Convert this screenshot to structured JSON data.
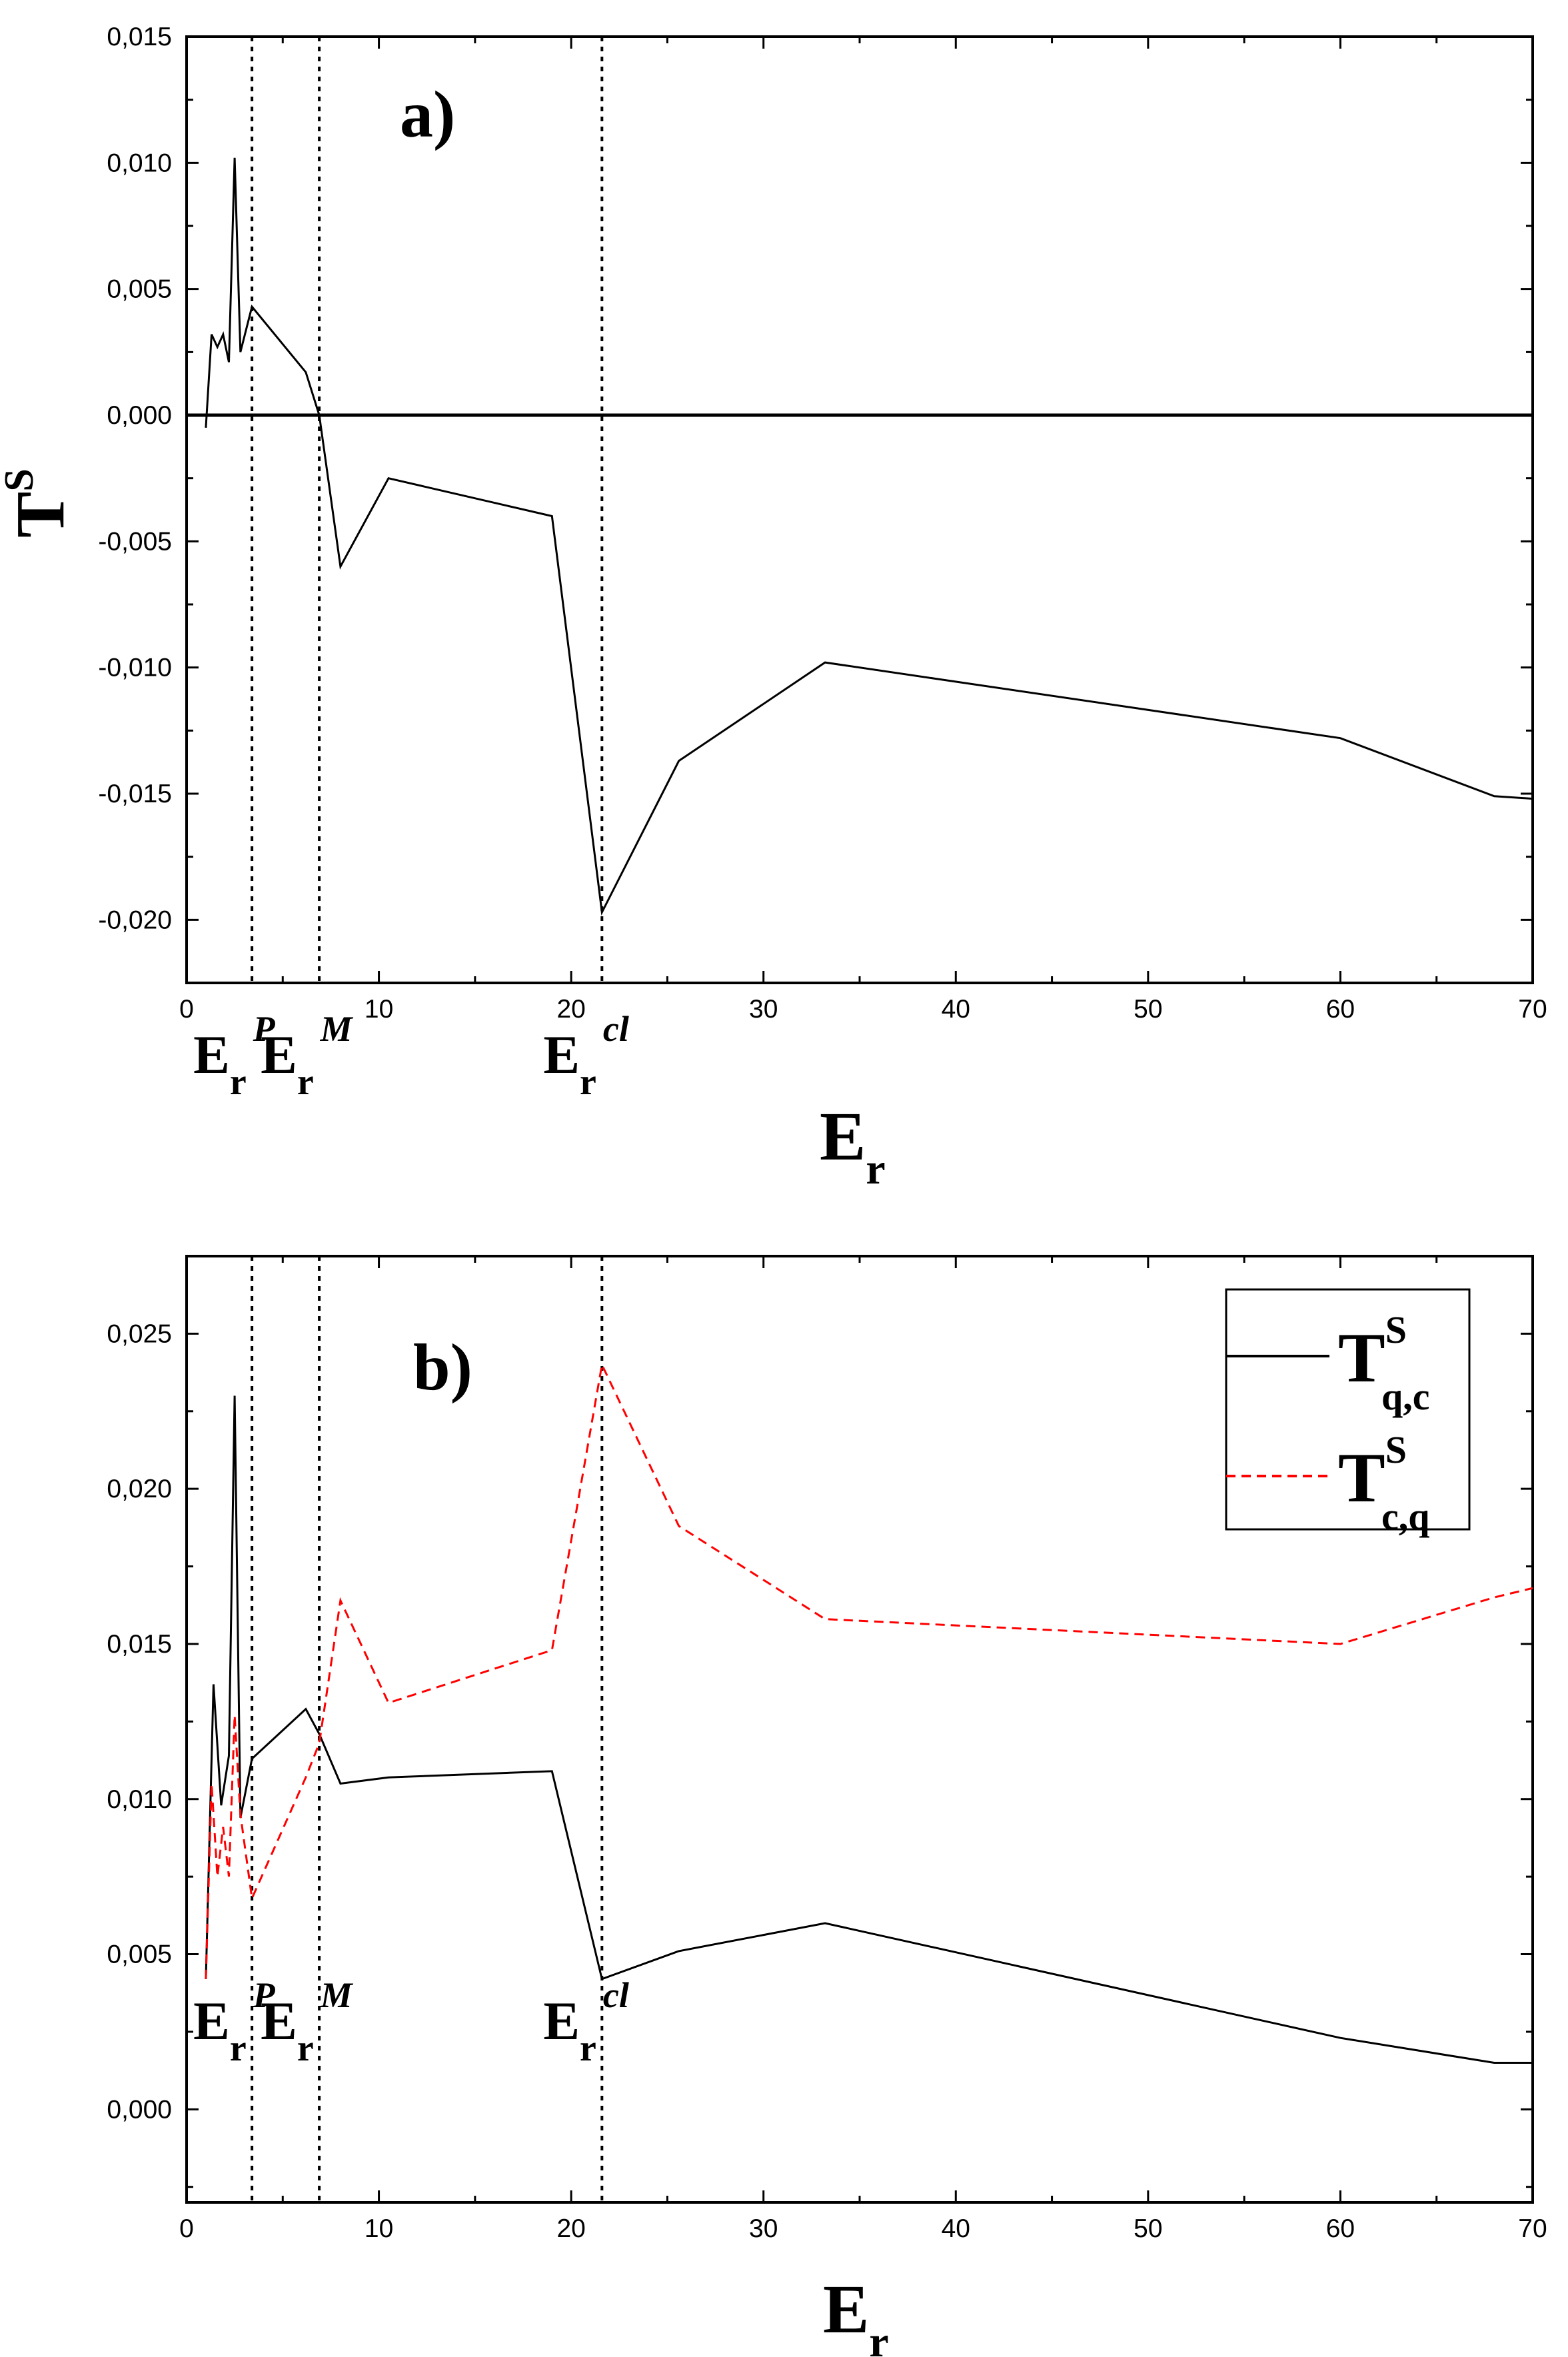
{
  "chart_data": [
    {
      "panel": "a)",
      "type": "line",
      "xlabel": "E_r",
      "ylabel": "T^S",
      "xlim": [
        0,
        70
      ],
      "ylim": [
        -0.0225,
        0.015
      ],
      "xticks": [
        0,
        10,
        20,
        30,
        40,
        50,
        60,
        70
      ],
      "xtick_labels": [
        "0",
        "10",
        "20",
        "30",
        "40",
        "50",
        "60",
        "70"
      ],
      "yticks": [
        -0.02,
        -0.015,
        -0.01,
        -0.005,
        0.0,
        0.005,
        0.01,
        0.015
      ],
      "ytick_labels": [
        "-0,020",
        "-0,015",
        "-0,010",
        "-0,005",
        "0,000",
        "0,005",
        "0,010",
        "0,015"
      ],
      "reference_line_y": 0,
      "vlines": [
        {
          "x": 3.4,
          "label_main": "E",
          "label_sub": "r",
          "label_sup": "P"
        },
        {
          "x": 6.9,
          "label_main": "E",
          "label_sub": "r",
          "label_sup": "M"
        },
        {
          "x": 21.6,
          "label_main": "E",
          "label_sub": "r",
          "label_sup": "cl"
        }
      ],
      "series": [
        {
          "color": "#000000",
          "dash": "solid",
          "x": [
            1.0,
            1.3,
            1.6,
            1.9,
            2.2,
            2.5,
            2.8,
            3.4,
            6.2,
            6.9,
            8.0,
            10.5,
            19.0,
            21.6,
            25.6,
            33.2,
            60.0,
            68.0,
            70.0
          ],
          "y": [
            -0.0005,
            0.0032,
            0.0027,
            0.0032,
            0.0021,
            0.0102,
            0.0025,
            0.0043,
            0.0017,
            0.0,
            -0.006,
            -0.0025,
            -0.004,
            -0.0197,
            -0.0137,
            -0.0098,
            -0.0128,
            -0.0151,
            -0.0152
          ]
        }
      ]
    },
    {
      "panel": "b)",
      "type": "line",
      "xlabel": "E_r",
      "xlim": [
        0,
        70
      ],
      "ylim": [
        -0.003,
        0.0275
      ],
      "xticks": [
        0,
        10,
        20,
        30,
        40,
        50,
        60,
        70
      ],
      "xtick_labels": [
        "0",
        "10",
        "20",
        "30",
        "40",
        "50",
        "60",
        "70"
      ],
      "yticks": [
        0.0,
        0.005,
        0.01,
        0.015,
        0.02,
        0.025
      ],
      "ytick_labels": [
        "0,000",
        "0,005",
        "0,010",
        "0,015",
        "0,020",
        "0,025"
      ],
      "vlines": [
        {
          "x": 3.4,
          "label_main": "E",
          "label_sub": "r",
          "label_sup": "P"
        },
        {
          "x": 6.9,
          "label_main": "E",
          "label_sub": "r",
          "label_sup": "M"
        },
        {
          "x": 21.6,
          "label_main": "E",
          "label_sub": "r",
          "label_sup": "cl"
        }
      ],
      "legend_position": "top-right",
      "series": [
        {
          "name": "T^S_q,c",
          "legend_main": "T",
          "legend_sup": "S",
          "legend_sub": "q,c",
          "color": "#000000",
          "dash": "solid",
          "x": [
            1.0,
            1.4,
            1.8,
            2.2,
            2.5,
            2.8,
            3.4,
            6.2,
            6.9,
            8.0,
            10.5,
            19.0,
            21.6,
            25.6,
            33.2,
            60.0,
            68.0,
            70.0
          ],
          "y": [
            0.0042,
            0.0137,
            0.0098,
            0.0114,
            0.023,
            0.0094,
            0.0113,
            0.0129,
            0.0121,
            0.0105,
            0.0107,
            0.0109,
            0.0042,
            0.0051,
            0.006,
            0.0023,
            0.0015,
            0.0015
          ]
        },
        {
          "name": "T^S_c,q",
          "legend_main": "T",
          "legend_sup": "S",
          "legend_sub": "c,q",
          "color": "#ff0000",
          "dash": "dashed",
          "x": [
            1.0,
            1.3,
            1.6,
            1.9,
            2.2,
            2.5,
            2.8,
            3.4,
            6.2,
            6.9,
            8.0,
            10.5,
            19.0,
            21.6,
            25.6,
            33.2,
            60.0,
            68.0,
            70.0
          ],
          "y": [
            0.0042,
            0.0105,
            0.0075,
            0.0091,
            0.0075,
            0.0127,
            0.0095,
            0.0068,
            0.0107,
            0.0118,
            0.0164,
            0.0131,
            0.0148,
            0.024,
            0.0188,
            0.0158,
            0.015,
            0.0165,
            0.0168
          ]
        }
      ]
    }
  ]
}
